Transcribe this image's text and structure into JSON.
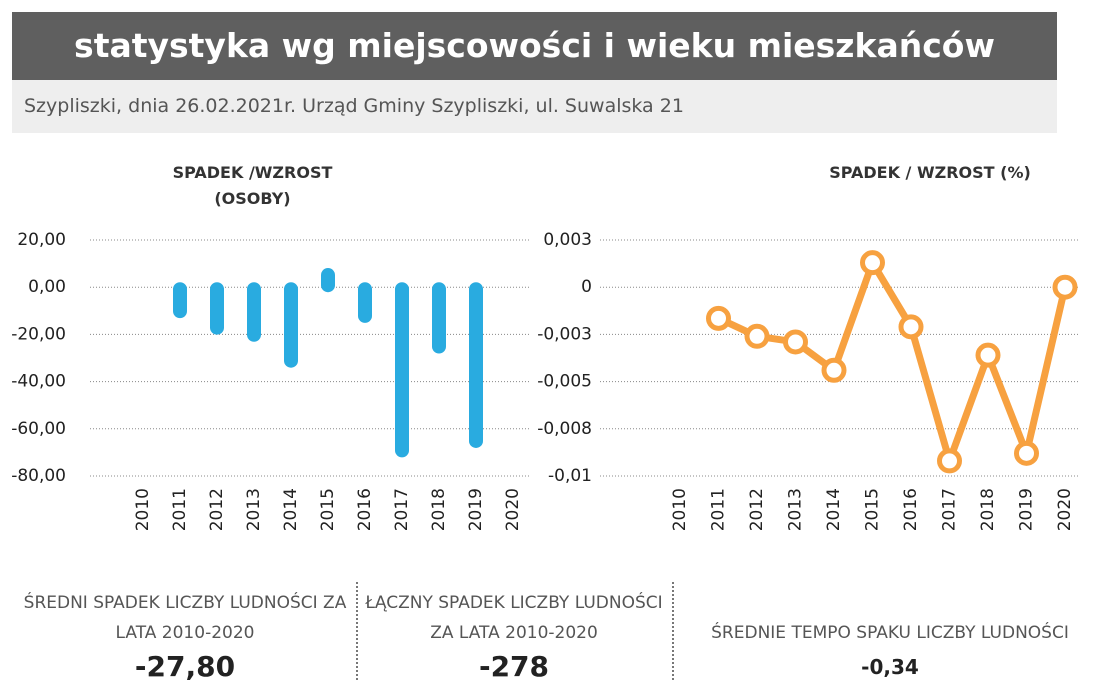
{
  "header": {
    "title": "statystyka wg miejscowości i wieku mieszkańców",
    "subtitle": "Szypliszki, dnia 26.02.2021r.  Urząd Gminy Szypliszki, ul. Suwalska 21"
  },
  "chart_data": [
    {
      "type": "bar",
      "title": "SPADEK /WZROST (OSOBY)",
      "categories": [
        "2010",
        "2011",
        "2012",
        "2013",
        "2014",
        "2015",
        "2016",
        "2017",
        "2018",
        "2019",
        "2020"
      ],
      "values": [
        null,
        -11,
        -18,
        -21,
        -32,
        6,
        -13,
        -70,
        -26,
        -66,
        null
      ],
      "color": "#29abe0",
      "ylim": [
        -80,
        20
      ],
      "yticks": [
        {
          "value": 20,
          "label": "20,00"
        },
        {
          "value": 0,
          "label": "0,00"
        },
        {
          "value": -20,
          "label": "-20,00"
        },
        {
          "value": -40,
          "label": "-40,00"
        },
        {
          "value": -60,
          "label": "-60,00"
        },
        {
          "value": -80,
          "label": "-80,00"
        }
      ],
      "grid": true
    },
    {
      "type": "line",
      "title": "SPADEK / WZROST (%)",
      "categories": [
        "2010",
        "2011",
        "2012",
        "2013",
        "2014",
        "2015",
        "2016",
        "2017",
        "2018",
        "2019",
        "2020"
      ],
      "values": [
        null,
        -0.00165,
        -0.0026,
        -0.0029,
        -0.0044,
        0.0013,
        -0.0021,
        -0.0092,
        -0.0036,
        -0.0088,
        0
      ],
      "color": "#f7a140",
      "ylim": [
        -0.01,
        0.0025
      ],
      "yticks": [
        {
          "value": 0.0025,
          "label": "0,003"
        },
        0,
        {
          "value": -0.0025,
          "label": "-0,003"
        },
        {
          "value": -0.005,
          "label": "-0,005"
        },
        {
          "value": -0.0075,
          "label": "-0,008"
        },
        {
          "value": -0.01,
          "label": "-0,01"
        }
      ],
      "grid": true
    }
  ],
  "stats": [
    {
      "label": "ŚREDNI SPADEK LICZBY LUDNOŚCI  ZA LATA 2010-2020",
      "value": "-27,80"
    },
    {
      "label": "ŁĄCZNY SPADEK LICZBY LUDNOŚCI  ZA LATA 2010-2020",
      "value": "-278"
    },
    {
      "label": "ŚREDNIE TEMPO SPAKU LICZBY LUDNOŚCI",
      "value": "-0,34"
    }
  ]
}
